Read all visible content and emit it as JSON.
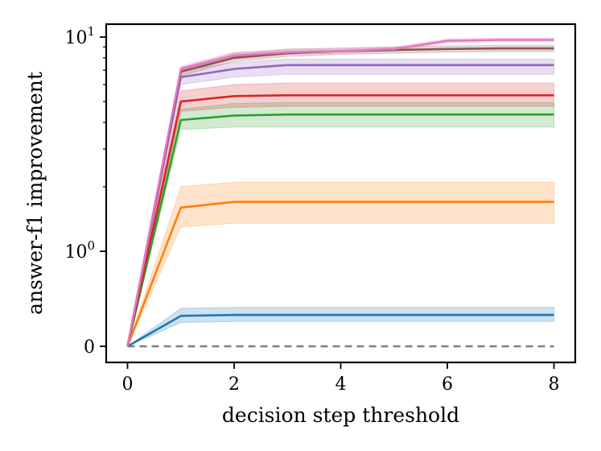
{
  "chart_data": {
    "type": "line",
    "xlabel": "decision step threshold",
    "ylabel": "answer-f1 improvement",
    "xlim": [
      -0.4,
      8.4
    ],
    "y_scale": "symlog",
    "x_ticks": [
      0,
      2,
      4,
      6,
      8
    ],
    "x_tick_labels": [
      "0",
      "2",
      "4",
      "6",
      "8"
    ],
    "y_ticks": [
      0,
      1,
      10
    ],
    "y_tick_labels": [
      {
        "base": "0",
        "exp": ""
      },
      {
        "base": "10",
        "exp": "0"
      },
      {
        "base": "10",
        "exp": "1"
      }
    ],
    "grid": false,
    "legend": "none",
    "x": [
      0,
      1,
      2,
      3,
      4,
      5,
      6,
      7,
      8
    ],
    "baseline": {
      "y": 0,
      "color": "#7f7f7f",
      "style": "dashed"
    },
    "series": [
      {
        "color": "#1f77b4",
        "values": [
          0,
          0.32,
          0.33,
          0.33,
          0.33,
          0.33,
          0.33,
          0.33,
          0.33
        ],
        "lower": [
          0,
          0.25,
          0.26,
          0.26,
          0.26,
          0.26,
          0.26,
          0.26,
          0.26
        ],
        "upper": [
          0,
          0.4,
          0.41,
          0.41,
          0.41,
          0.41,
          0.41,
          0.41,
          0.41
        ]
      },
      {
        "color": "#ff7f0e",
        "values": [
          0,
          1.6,
          1.7,
          1.7,
          1.7,
          1.7,
          1.7,
          1.7,
          1.7
        ],
        "lower": [
          0,
          1.3,
          1.35,
          1.35,
          1.35,
          1.35,
          1.35,
          1.35,
          1.35
        ],
        "upper": [
          0,
          2.0,
          2.1,
          2.1,
          2.1,
          2.1,
          2.1,
          2.1,
          2.1
        ]
      },
      {
        "color": "#2ca02c",
        "values": [
          0,
          4.1,
          4.3,
          4.35,
          4.35,
          4.35,
          4.35,
          4.35,
          4.35
        ],
        "lower": [
          0,
          3.7,
          3.8,
          3.8,
          3.8,
          3.8,
          3.8,
          3.8,
          3.8
        ],
        "upper": [
          0,
          4.6,
          4.9,
          4.95,
          4.95,
          4.95,
          4.95,
          4.95,
          4.95
        ]
      },
      {
        "color": "#d62728",
        "values": [
          0,
          5.0,
          5.3,
          5.35,
          5.35,
          5.35,
          5.35,
          5.35,
          5.35
        ],
        "lower": [
          0,
          4.5,
          4.7,
          4.75,
          4.75,
          4.75,
          4.75,
          4.75,
          4.75
        ],
        "upper": [
          0,
          5.6,
          6.0,
          6.1,
          6.1,
          6.1,
          6.1,
          6.1,
          6.1
        ]
      },
      {
        "color": "#9467bd",
        "values": [
          0,
          6.5,
          7.1,
          7.4,
          7.4,
          7.4,
          7.4,
          7.4,
          7.4
        ],
        "lower": [
          0,
          6.0,
          6.5,
          6.7,
          6.7,
          6.7,
          6.7,
          6.7,
          6.7
        ],
        "upper": [
          0,
          7.0,
          7.6,
          7.9,
          7.9,
          7.9,
          7.9,
          7.9,
          7.9
        ]
      },
      {
        "color": "#8c564b",
        "values": [
          0,
          6.9,
          8.0,
          8.4,
          8.6,
          8.7,
          8.8,
          8.85,
          8.85
        ],
        "lower": [
          0,
          6.6,
          7.7,
          8.1,
          8.3,
          8.4,
          8.5,
          8.55,
          8.55
        ],
        "upper": [
          0,
          7.2,
          8.4,
          8.8,
          8.9,
          9.0,
          9.1,
          9.15,
          9.15
        ]
      },
      {
        "color": "#e377c2",
        "values": [
          0,
          7.1,
          8.2,
          8.5,
          8.6,
          8.8,
          9.6,
          9.7,
          9.7
        ],
        "lower": [
          0,
          6.9,
          7.9,
          8.3,
          8.4,
          8.6,
          9.4,
          9.5,
          9.5
        ],
        "upper": [
          0,
          7.3,
          8.5,
          8.7,
          8.8,
          9.0,
          9.8,
          9.9,
          9.9
        ]
      }
    ]
  }
}
